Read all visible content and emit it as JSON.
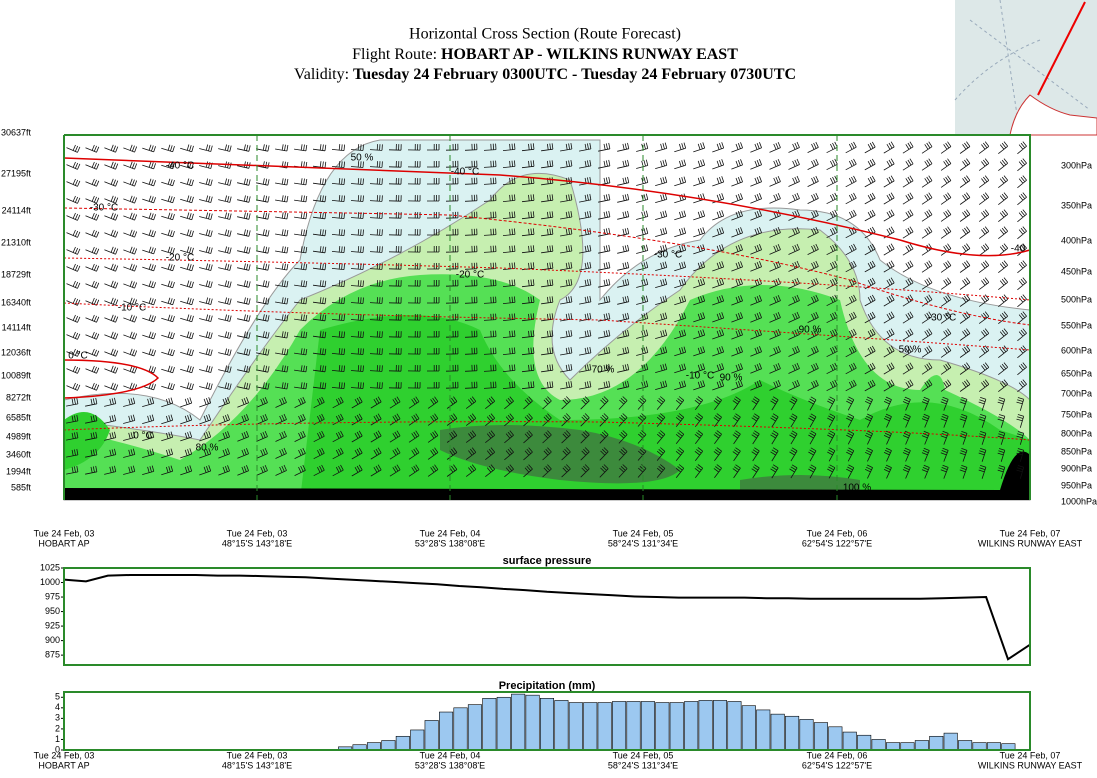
{
  "header": {
    "title": "Horizontal Cross Section (Route Forecast)",
    "route_label": "Flight Route:",
    "route": "HOBART AP - WILKINS RUNWAY EAST",
    "validity_label": "Validity:",
    "validity": "Tuesday 24 February 0300UTC - Tuesday 24 February 0730UTC"
  },
  "cross_section": {
    "altitudes": [
      "30637ft",
      "27195ft",
      "24114ft",
      "21310ft",
      "18729ft",
      "16340ft",
      "14114ft",
      "12036ft",
      "10089ft",
      "8272ft",
      "6585ft",
      "4989ft",
      "3460ft",
      "1994ft",
      "585ft"
    ],
    "pressures": [
      "300hPa",
      "350hPa",
      "400hPa",
      "450hPa",
      "500hPa",
      "550hPa",
      "600hPa",
      "650hPa",
      "700hPa",
      "750hPa",
      "800hPa",
      "850hPa",
      "900hPa",
      "950hPa",
      "1000hPa"
    ],
    "time_labels": [
      "Tue 24 Feb, 03",
      "Tue 24 Feb, 03",
      "Tue 24 Feb, 04",
      "Tue 24 Feb, 05",
      "Tue 24 Feb, 06",
      "Tue 24 Feb, 07"
    ],
    "place_labels": [
      "HOBART AP",
      "48°15'S 143°18'E",
      "53°28'S 138°08'E",
      "58°24'S 131°34'E",
      "62°54'S 122°57'E",
      "WILKINS RUNWAY EAST"
    ],
    "annotations": [
      "-40 °C",
      "-40 °C",
      "-40",
      "-30 °C",
      "-30 °C",
      "-30 °C",
      "-20 °C",
      "-20 °C",
      "-10 °C",
      "-10 °C",
      "0 °C",
      "0 °C",
      "50 %",
      "70 %",
      "90 %",
      "80 %",
      "100 %",
      "50 %",
      "90 %"
    ]
  },
  "chart_data": [
    {
      "type": "line",
      "title": "surface pressure",
      "color": "#000000",
      "ylim": [
        858,
        1025
      ],
      "yticks": [
        875,
        900,
        925,
        950,
        975,
        1000,
        1025
      ],
      "values": [
        1005,
        1002,
        1012,
        1013,
        1013,
        1013,
        1013,
        1012,
        1012,
        1011,
        1010,
        1009,
        1007,
        1005,
        1003,
        1001,
        999,
        997,
        994,
        992,
        989,
        987,
        984,
        982,
        980,
        978,
        976,
        975,
        974,
        974,
        974,
        974,
        973,
        973,
        972,
        972,
        972,
        972,
        972,
        972,
        973,
        974,
        975,
        868,
        893
      ]
    },
    {
      "type": "bar",
      "title": "Precipitation (mm)",
      "color": "#9cc8f0",
      "ylim": [
        0,
        5.5
      ],
      "yticks": [
        0,
        1,
        2,
        3,
        4,
        5
      ],
      "values": [
        0,
        0.05,
        0.05,
        0,
        0,
        0,
        0,
        0,
        0,
        0,
        0,
        0,
        0,
        0,
        0,
        0,
        0,
        0,
        0,
        0.3,
        0.5,
        0.7,
        0.9,
        1.3,
        1.9,
        2.8,
        3.6,
        4.0,
        4.3,
        4.9,
        5.0,
        5.3,
        5.2,
        4.9,
        4.7,
        4.5,
        4.5,
        4.5,
        4.6,
        4.6,
        4.6,
        4.5,
        4.5,
        4.6,
        4.7,
        4.7,
        4.6,
        4.2,
        3.8,
        3.4,
        3.2,
        2.9,
        2.6,
        2.2,
        1.7,
        1.4,
        1.0,
        0.7,
        0.7,
        0.9,
        1.3,
        1.6,
        0.9,
        0.7,
        0.7,
        0.6,
        0
      ]
    }
  ]
}
